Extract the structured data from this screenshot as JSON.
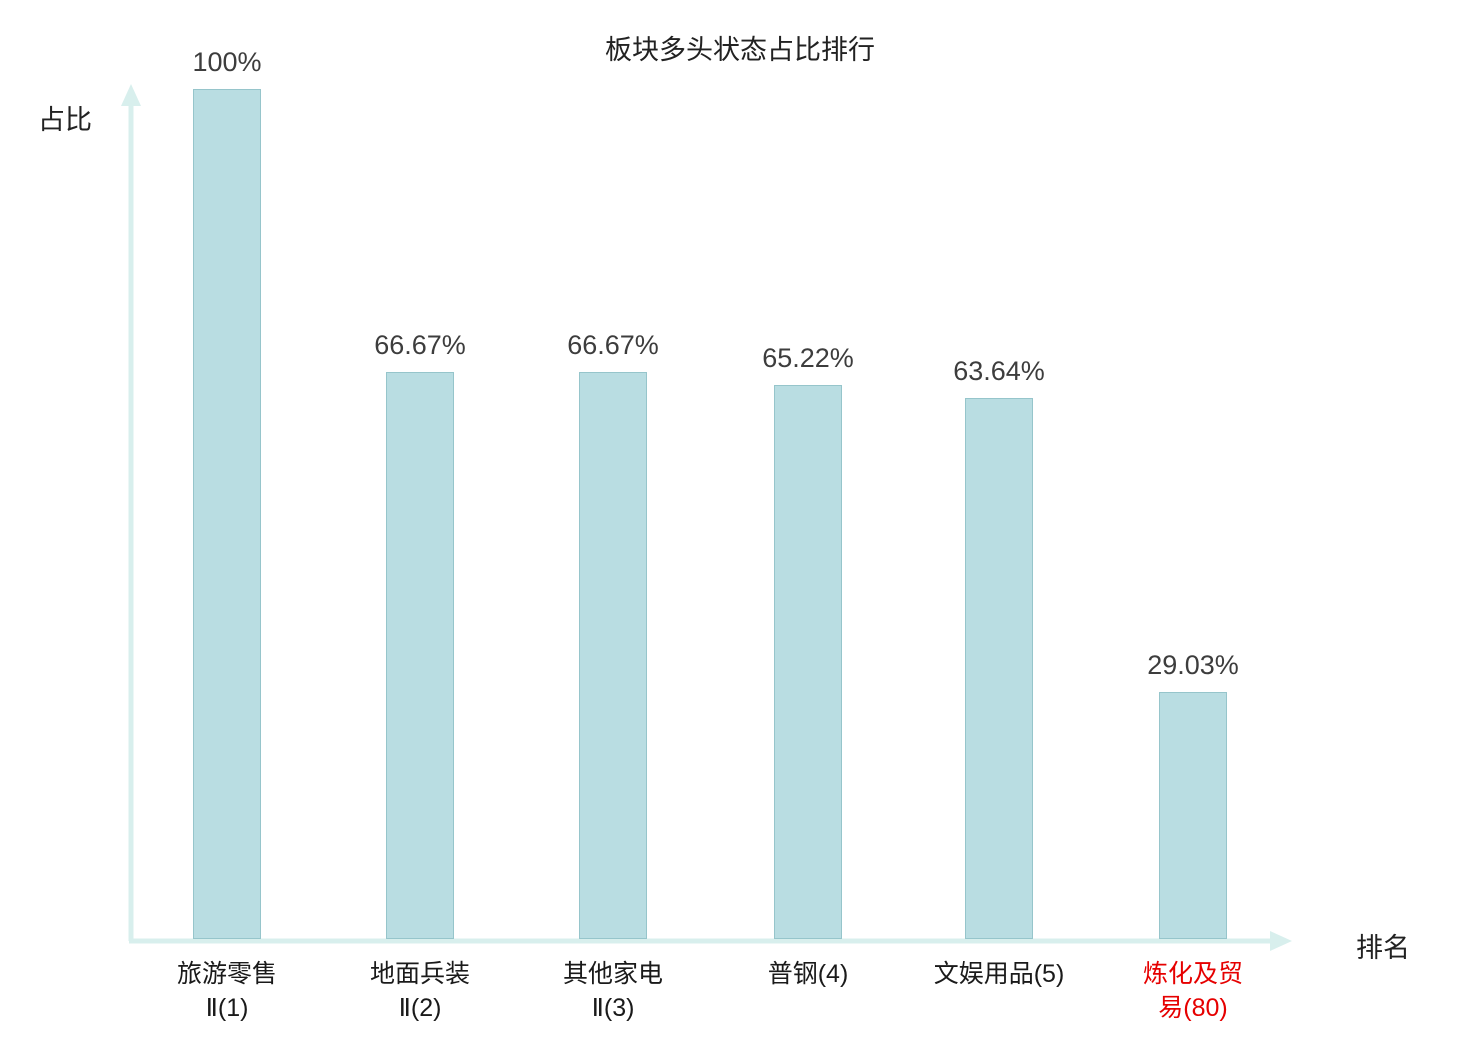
{
  "chart_data": {
    "type": "bar",
    "title": "板块多头状态占比排行",
    "xlabel": "排名",
    "ylabel": "占比",
    "ylim": [
      0,
      100
    ],
    "grid": false,
    "legend": "none",
    "values": [
      100,
      66.67,
      66.67,
      65.22,
      63.64,
      29.03
    ],
    "value_labels": [
      "100%",
      "66.67%",
      "66.67%",
      "65.22%",
      "63.64%",
      "29.03%"
    ],
    "categories": [
      {
        "lines": [
          "旅游零售",
          "Ⅱ(1)"
        ],
        "color": "#1a1a1a"
      },
      {
        "lines": [
          "地面兵装",
          "Ⅱ(2)"
        ],
        "color": "#1a1a1a"
      },
      {
        "lines": [
          "其他家电",
          "Ⅱ(3)"
        ],
        "color": "#1a1a1a"
      },
      {
        "lines": [
          "普钢(4)"
        ],
        "color": "#1a1a1a"
      },
      {
        "lines": [
          "文娱用品(5)"
        ],
        "color": "#1a1a1a"
      },
      {
        "lines": [
          "炼化及贸",
          "易(80)"
        ],
        "color": "#e60000"
      }
    ],
    "bar_fill_color": "#b9dde2",
    "bar_border_color": "#96c5cb",
    "axis_color": "#d8efed"
  }
}
